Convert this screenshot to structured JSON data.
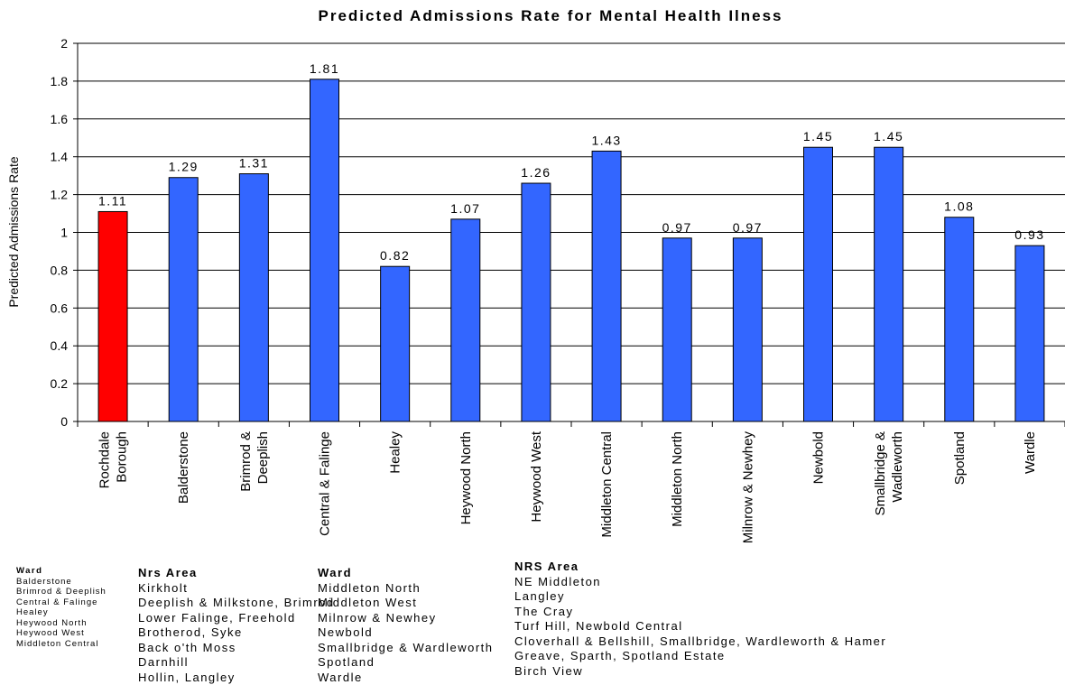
{
  "chart_data": {
    "type": "bar",
    "title": "Predicted Admissions Rate for Mental Health Ilness",
    "xlabel": "",
    "ylabel": "Predicted Admissions Rate",
    "ylim": [
      0,
      2
    ],
    "yticks": [
      "0",
      "0.2",
      "0.4",
      "0.6",
      "0.8",
      "1",
      "1.2",
      "1.4",
      "1.6",
      "1.8",
      "2"
    ],
    "grid": true,
    "categories": [
      [
        "Rochdale",
        "Borough"
      ],
      [
        "Balderstone"
      ],
      [
        "Brimrod &",
        "Deeplish"
      ],
      [
        "Central & Falinge"
      ],
      [
        "Healey"
      ],
      [
        "Heywood North"
      ],
      [
        "Heywood West"
      ],
      [
        "Middleton Central"
      ],
      [
        "Middleton North"
      ],
      [
        "Milnrow & Newhey"
      ],
      [
        "Newbold"
      ],
      [
        "Smallbridge &",
        "Wadleworth"
      ],
      [
        "Spotland"
      ],
      [
        "Wardle"
      ]
    ],
    "values": [
      1.11,
      1.29,
      1.31,
      1.81,
      0.82,
      1.07,
      1.26,
      1.43,
      0.97,
      0.97,
      1.45,
      1.45,
      1.08,
      0.93
    ],
    "data_labels": [
      "1.11",
      "1.29",
      "1.31",
      "1.81",
      "0.82",
      "1.07",
      "1.26",
      "1.43",
      "0.97",
      "0.97",
      "1.45",
      "1.45",
      "1.08",
      "0.93"
    ],
    "colors": {
      "highlight": "#ff0000",
      "bar": "#3366ff",
      "outline": "#000000"
    },
    "highlight_index": 0
  },
  "legend_table": {
    "col1": {
      "header": "Ward",
      "rows": [
        "Balderstone",
        "Brimrod & Deeplish",
        "Central & Falinge",
        "Healey",
        "Heywood North",
        "Heywood West",
        "Middleton Central"
      ]
    },
    "col2": {
      "header": "Nrs Area",
      "rows": [
        "Kirkholt",
        "Deeplish & Milkstone, Brimrod",
        "Lower Falinge, Freehold",
        "Brotherod, Syke",
        "Back o'th Moss",
        "Darnhill",
        "Hollin, Langley"
      ]
    },
    "col3": {
      "header": "Ward",
      "rows": [
        "Middleton North",
        "Middleton West",
        "Milnrow & Newhey",
        "Newbold",
        "Smallbridge & Wardleworth",
        "Spotland",
        "Wardle"
      ]
    },
    "col4": {
      "header": "NRS Area",
      "rows": [
        "NE Middleton",
        "Langley",
        "The Cray",
        "Turf Hill, Newbold Central",
        "Cloverhall & Bellshill, Smallbridge, Wardleworth & Hamer",
        "Greave, Sparth, Spotland Estate",
        "Birch View"
      ]
    }
  }
}
